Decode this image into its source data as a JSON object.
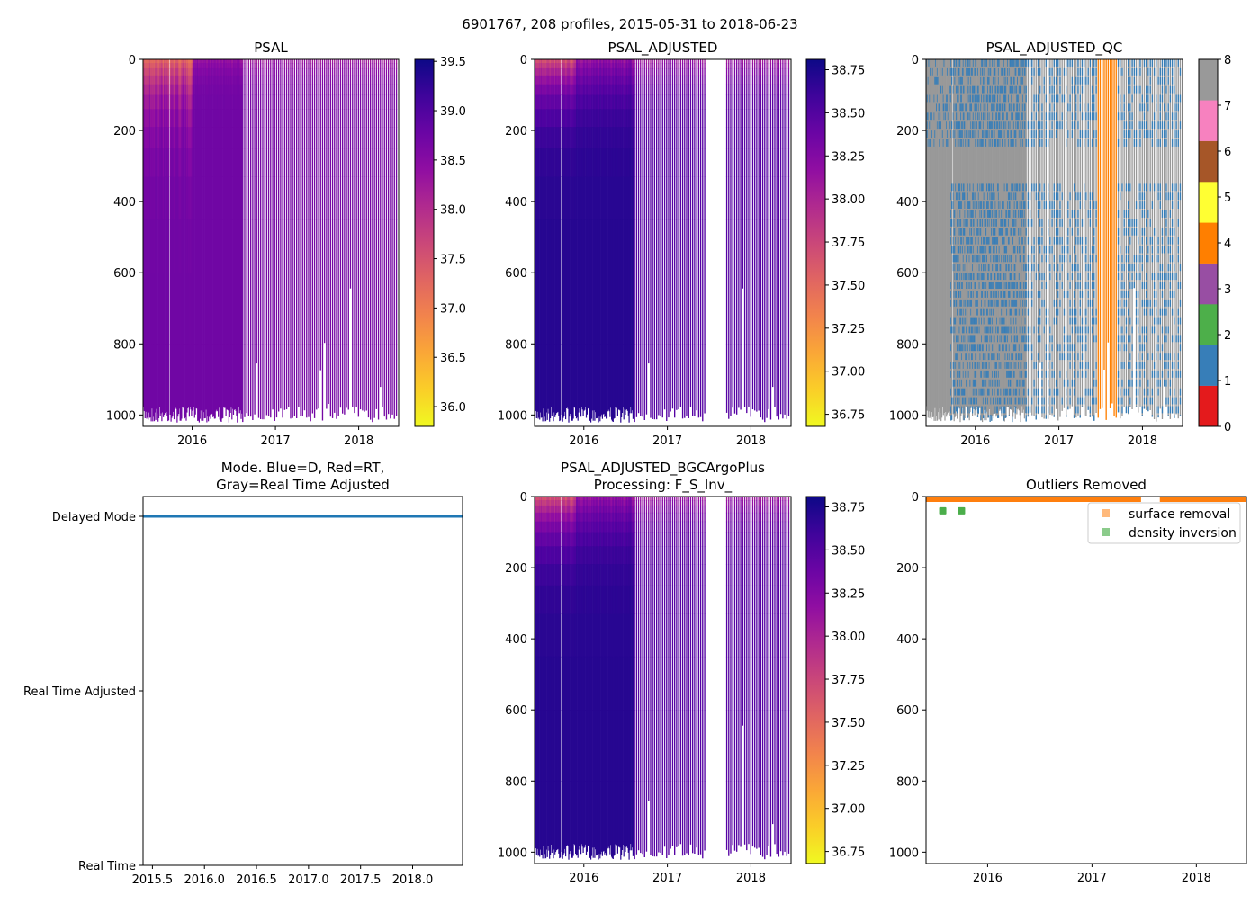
{
  "chart_data": {
    "type": "heatmap",
    "suptitle": "6901767, 208 profiles, 2015-05-31 to 2018-06-23",
    "n_profiles": 208,
    "time_range": [
      2015.41,
      2018.48
    ],
    "depth_range": [
      0,
      1032
    ],
    "panels": [
      {
        "id": "psal",
        "title": "PSAL",
        "colormap": "plasma_r",
        "clim": [
          35.8,
          39.52
        ],
        "yticks": [
          "0",
          "200",
          "400",
          "600",
          "800",
          "1000"
        ],
        "xticks": [
          "2016",
          "2017",
          "2018"
        ],
        "cbar_ticks": [
          "36.0",
          "36.5",
          "37.0",
          "37.5",
          "38.0",
          "38.5",
          "39.0",
          "39.5"
        ],
        "surface_value": 37.6,
        "deep_value": 38.72
      },
      {
        "id": "adj",
        "title": "PSAL_ADJUSTED",
        "colormap": "plasma_r",
        "clim": [
          36.68,
          38.81
        ],
        "yticks": [
          "0",
          "200",
          "400",
          "600",
          "800",
          "1000"
        ],
        "xticks": [
          "2016",
          "2017",
          "2018"
        ],
        "cbar_ticks": [
          "36.75",
          "37.00",
          "37.25",
          "37.50",
          "37.75",
          "38.00",
          "38.25",
          "38.50",
          "38.75"
        ],
        "surface_value": 37.9,
        "deep_value": 38.68,
        "missing_time_range": [
          2017.45,
          2017.7
        ]
      },
      {
        "id": "qc",
        "title": "PSAL_ADJUSTED_QC",
        "colormap": "qc",
        "clim": [
          0,
          8
        ],
        "yticks": [
          "0",
          "200",
          "400",
          "600",
          "800",
          "1000"
        ],
        "xticks": [
          "2016",
          "2017",
          "2018"
        ],
        "cbar_ticks": [
          "0",
          "1",
          "2",
          "3",
          "4",
          "5",
          "6",
          "7",
          "8"
        ],
        "qc_colors": [
          "#e41a1c",
          "#377eb8",
          "#4daf4a",
          "#984ea3",
          "#ff7f00",
          "#ffff33",
          "#a65628",
          "#f781bf",
          "#999999"
        ],
        "flag4_time_range": [
          2017.45,
          2017.7
        ]
      },
      {
        "id": "mode",
        "title_line1": "Mode. Blue=D, Red=RT,",
        "title_line2": "Gray=Real Time Adjusted",
        "yticks": [
          "Delayed Mode",
          "Real Time Adjusted",
          "Real Time"
        ],
        "xticks": [
          "2015.5",
          "2016.0",
          "2016.5",
          "2017.0",
          "2017.5",
          "2018.0"
        ],
        "values": "all profiles Delayed Mode",
        "line_color": "#1f77b4"
      },
      {
        "id": "bgc",
        "title_line1": "PSAL_ADJUSTED_BGCArgoPlus",
        "title_line2": "Processing: F_S_Inv_",
        "colormap": "plasma_r",
        "clim": [
          36.68,
          38.81
        ],
        "yticks": [
          "0",
          "200",
          "400",
          "600",
          "800",
          "1000"
        ],
        "xticks": [
          "2016",
          "2017",
          "2018"
        ],
        "cbar_ticks": [
          "36.75",
          "37.00",
          "37.25",
          "37.50",
          "37.75",
          "38.00",
          "38.25",
          "38.50",
          "38.75"
        ],
        "missing_time_range": [
          2017.45,
          2017.7
        ]
      },
      {
        "id": "out",
        "title": "Outliers Removed",
        "yticks": [
          "0",
          "200",
          "400",
          "600",
          "800",
          "1000"
        ],
        "xticks": [
          "2016",
          "2017",
          "2018"
        ],
        "legend": [
          {
            "label": "surface removal",
            "color": "#ff7f0e"
          },
          {
            "label": "density inversion",
            "color": "#2ca02c"
          }
        ],
        "legend_position": "upper right",
        "surface_removal": {
          "depth": 0,
          "time_gap": [
            2017.47,
            2017.65
          ]
        },
        "density_inversion": [
          {
            "time": 2015.57,
            "depth": 40
          },
          {
            "time": 2015.75,
            "depth": 40
          }
        ]
      }
    ]
  }
}
